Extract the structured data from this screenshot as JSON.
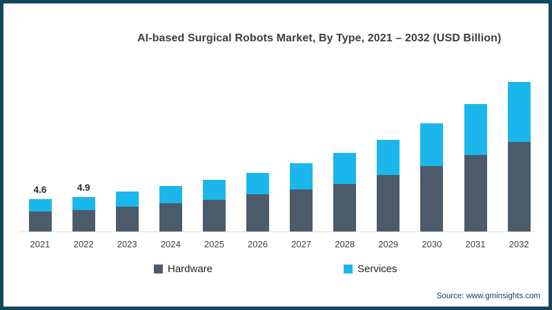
{
  "title": "AI-based Surgical Robots Market, By Type, 2021 – 2032 (USD Billion)",
  "source": "Source: www.gminsights.com",
  "legend": [
    {
      "label": "Hardware",
      "color": "#4b5b6a"
    },
    {
      "label": "Services",
      "color": "#1bb7ec"
    }
  ],
  "colors": {
    "hardware": "#4b5b6a",
    "services": "#1bb7ec",
    "frame_border": "#15465f",
    "axis_line": "#d9d9d9"
  },
  "chart_data": {
    "type": "bar",
    "stacked": true,
    "title": "AI-based Surgical Robots Market, By Type, 2021 – 2032 (USD Billion)",
    "categories": [
      "2021",
      "2022",
      "2023",
      "2024",
      "2025",
      "2026",
      "2027",
      "2028",
      "2029",
      "2030",
      "2031",
      "2032"
    ],
    "series": [
      {
        "name": "Hardware",
        "values": [
          2.8,
          3.0,
          3.5,
          4.0,
          4.5,
          5.2,
          5.9,
          6.7,
          8.0,
          9.2,
          10.8,
          12.6
        ]
      },
      {
        "name": "Services",
        "values": [
          1.8,
          1.9,
          2.1,
          2.4,
          2.8,
          3.1,
          3.7,
          4.4,
          4.9,
          6.0,
          7.2,
          8.5
        ]
      }
    ],
    "totals": [
      4.6,
      4.9,
      5.6,
      6.4,
      7.3,
      8.3,
      9.6,
      11.1,
      12.9,
      15.2,
      18.0,
      21.1
    ],
    "value_labels": {
      "2021": "4.6",
      "2022": "4.9"
    },
    "xlabel": "",
    "ylabel": "USD Billion",
    "ylim": [
      0,
      22
    ],
    "grid": false,
    "y_axis_visible": false,
    "legend_position": "bottom"
  }
}
